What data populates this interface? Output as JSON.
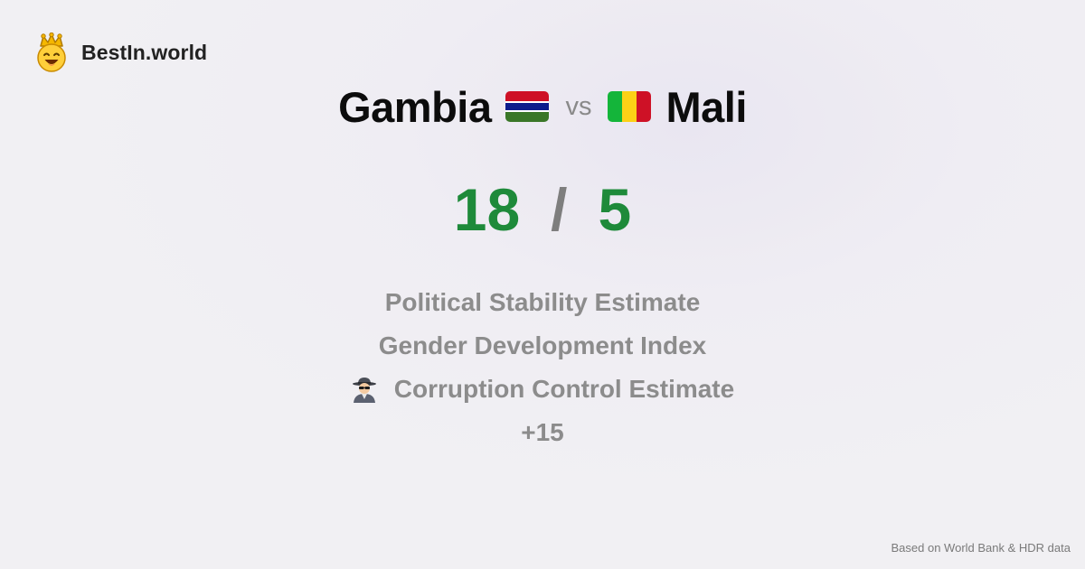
{
  "brand": {
    "name": "BestIn.world",
    "logo_icon": "crowned-smiley-icon"
  },
  "matchup": {
    "left_country": "Gambia",
    "left_flag": "gambia-flag-icon",
    "vs_label": "vs",
    "right_country": "Mali",
    "right_flag": "mali-flag-icon"
  },
  "score": {
    "left": "18",
    "separator": "/",
    "right": "5"
  },
  "metrics": [
    "Political Stability Estimate",
    "Gender Development Index",
    "Corruption Control Estimate",
    "+15"
  ],
  "metric_icons": {
    "corruption": "detective-icon"
  },
  "footer": {
    "source": "Based on World Bank & HDR data"
  },
  "colors": {
    "score": "#1e8a3a",
    "muted": "#8c8c8c"
  }
}
